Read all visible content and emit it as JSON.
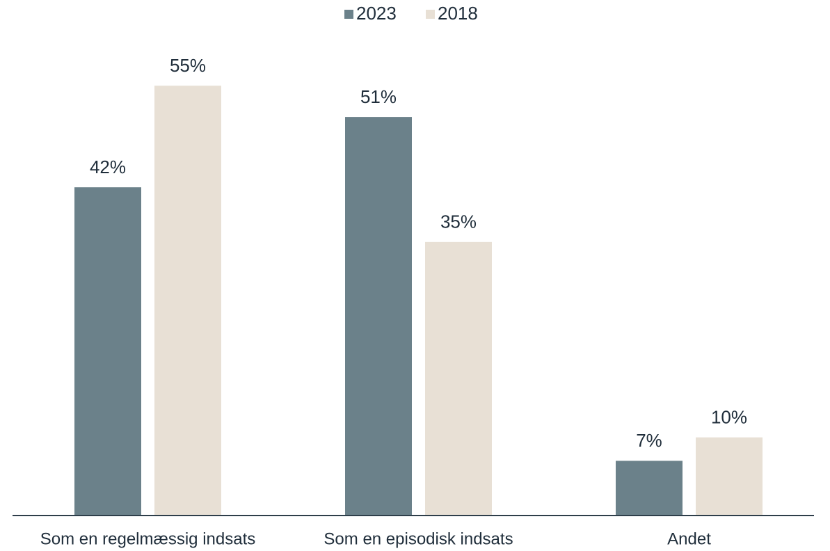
{
  "chart_data": {
    "type": "bar",
    "categories": [
      "Som en regelmæssig indsats",
      "Som en episodisk indsats",
      "Andet"
    ],
    "series": [
      {
        "name": "2023",
        "color": "#6b818a",
        "values": [
          42,
          51,
          7
        ],
        "value_labels": [
          "42%",
          "51%",
          "7%"
        ]
      },
      {
        "name": "2018",
        "color": "#e8e0d5",
        "values": [
          55,
          35,
          10
        ],
        "value_labels": [
          "55%",
          "35%",
          "10%"
        ]
      }
    ],
    "ylim": [
      0,
      60
    ],
    "legend": "top"
  }
}
